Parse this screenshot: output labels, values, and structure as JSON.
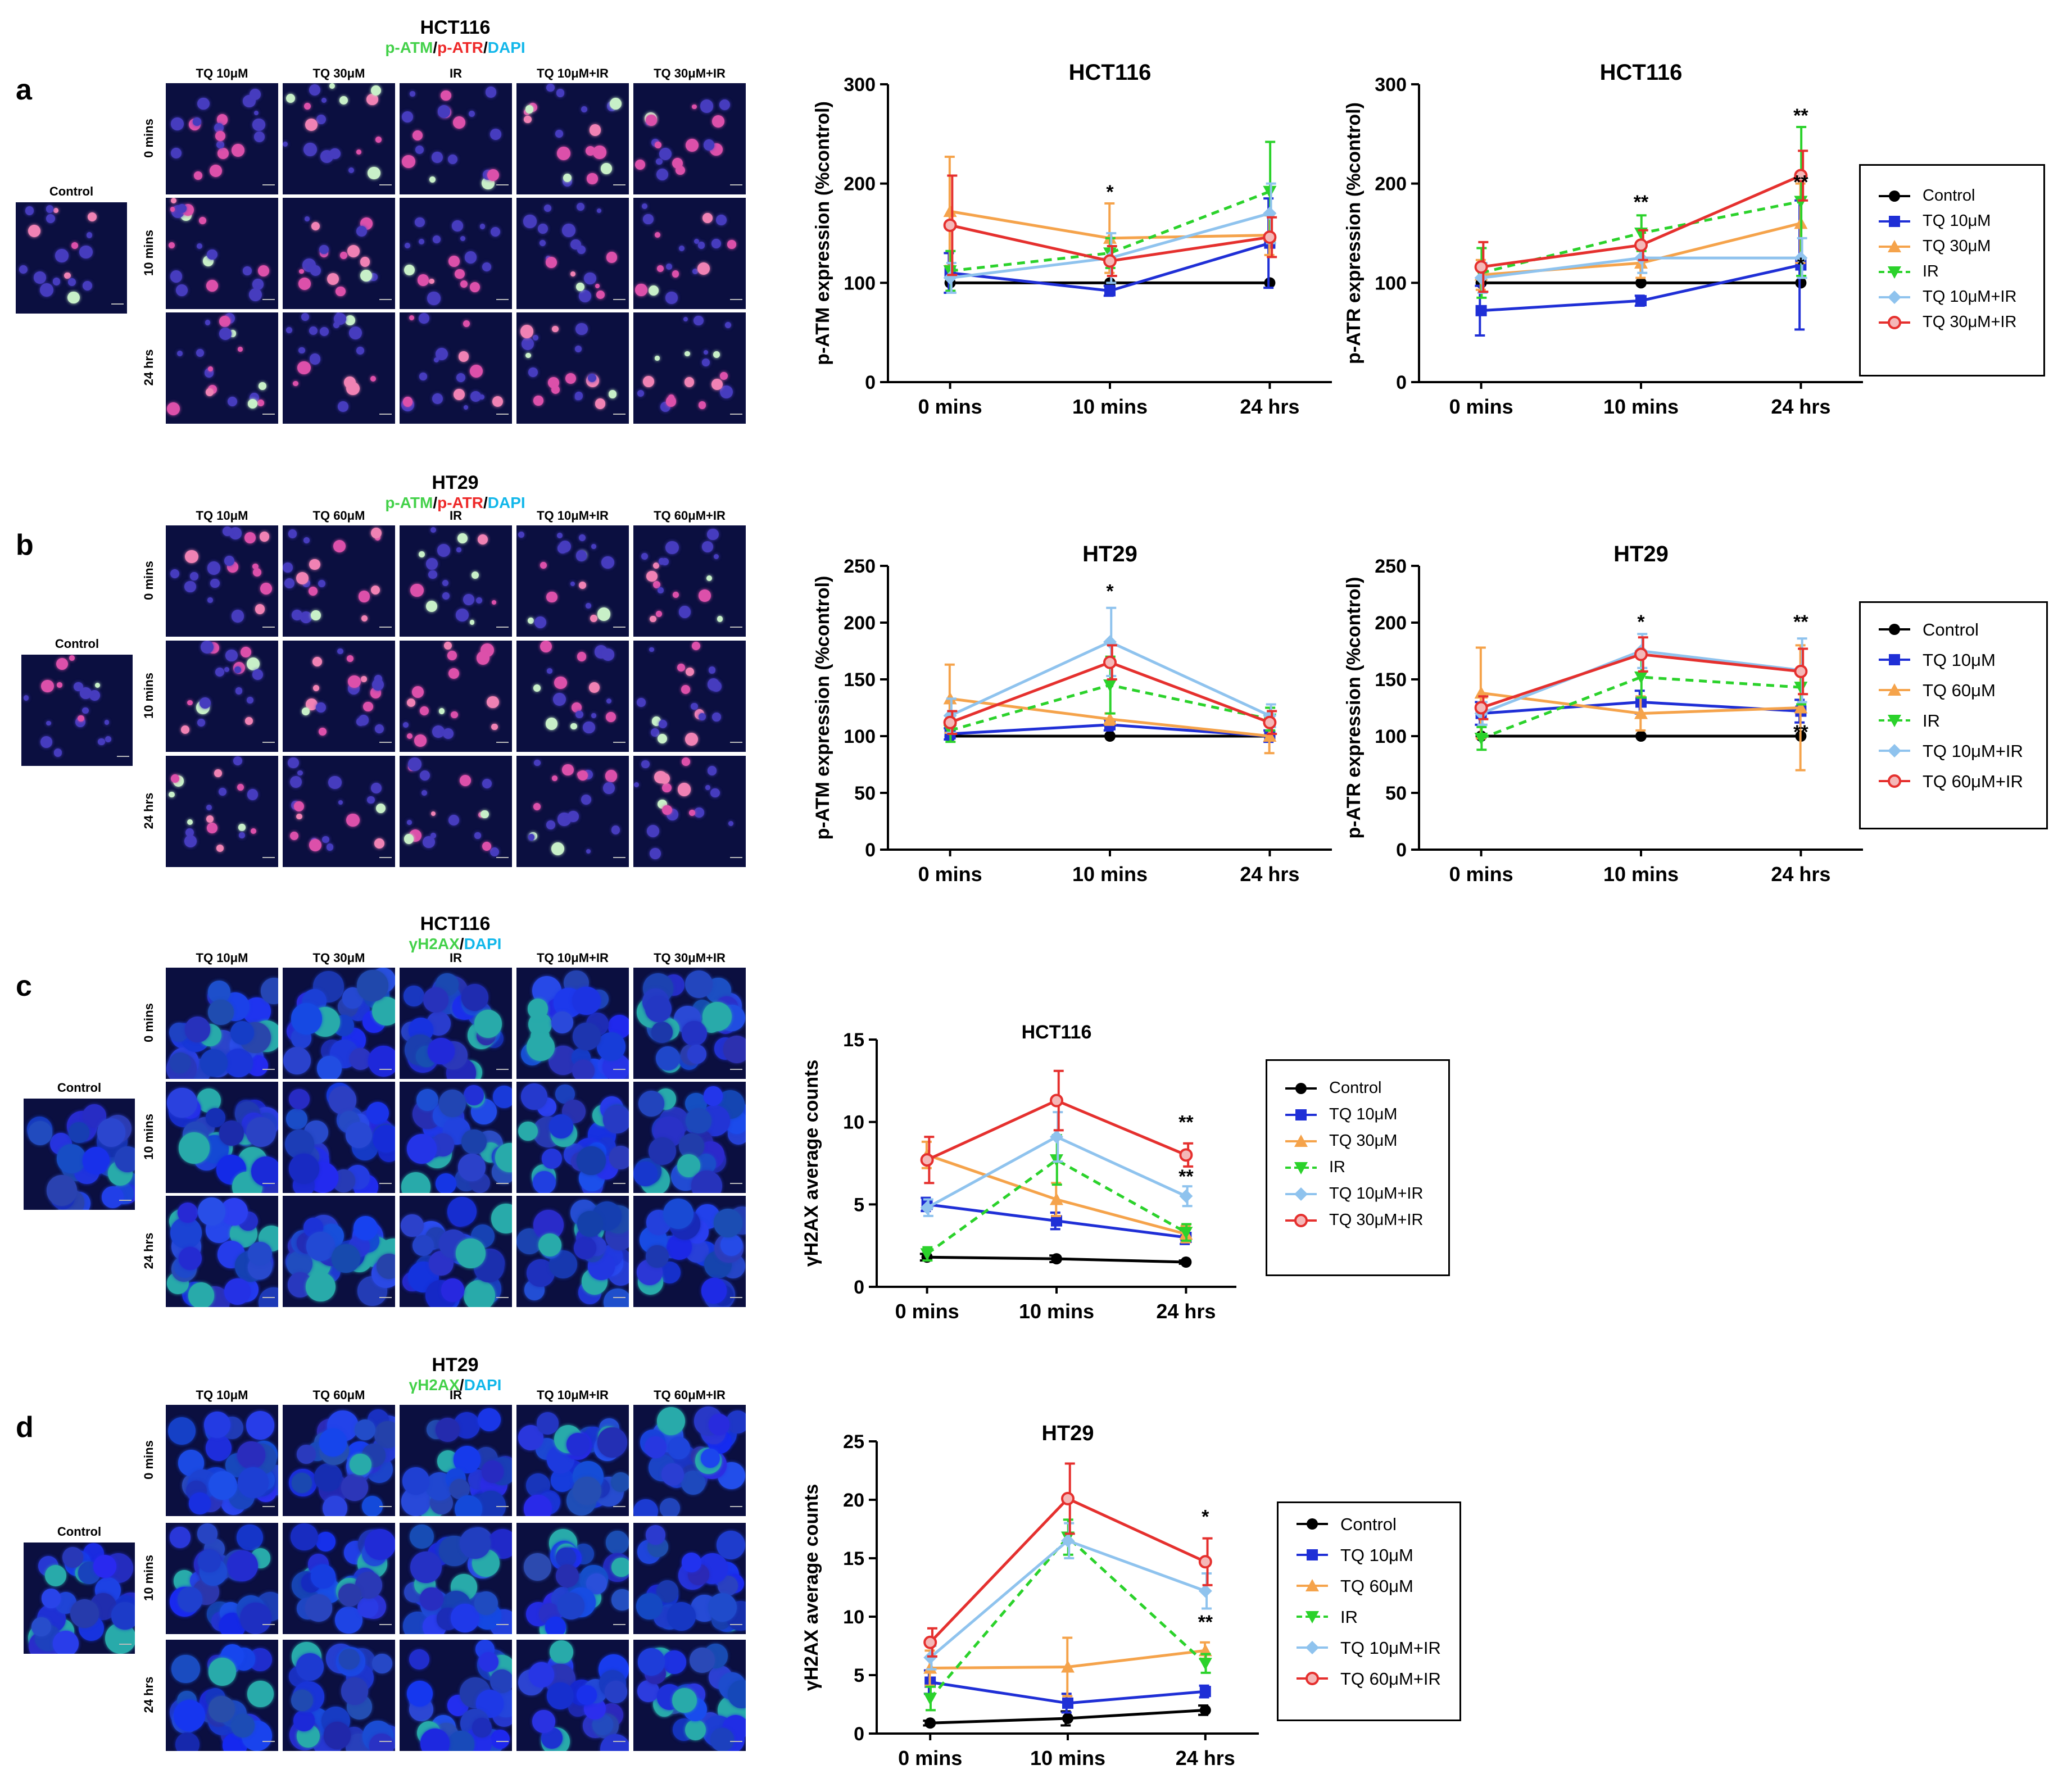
{
  "colors": {
    "control": "#000000",
    "tq_low": "#1f2fd6",
    "tq_high": "#f5a34b",
    "ir": "#2bd22b",
    "tq_low_ir": "#8fc3ee",
    "tq_high_ir": "#e5302e",
    "green": "#44d14a",
    "red": "#ee2a2a",
    "cyan": "#12b7ea"
  },
  "panels": [
    {
      "letter": "a",
      "cell_line": "HCT116",
      "stain": [
        {
          "text": "p-ATM",
          "color": "green"
        },
        {
          "text": "/",
          "color": "black"
        },
        {
          "text": "p-ATR",
          "color": "red"
        },
        {
          "text": "/",
          "color": "black"
        },
        {
          "text": "DAPI",
          "color": "cyan"
        }
      ],
      "columns": [
        "TQ 10μM",
        "TQ 30μM",
        "IR",
        "TQ 10μM+IR",
        "TQ 30μM+IR"
      ],
      "rows": [
        "0 mins",
        "10 mins",
        "24 hrs"
      ],
      "control_label": "Control"
    },
    {
      "letter": "b",
      "cell_line": "HT29",
      "stain": [
        {
          "text": "p-ATM",
          "color": "green"
        },
        {
          "text": "/",
          "color": "black"
        },
        {
          "text": "p-ATR",
          "color": "red"
        },
        {
          "text": "/",
          "color": "black"
        },
        {
          "text": "DAPI",
          "color": "cyan"
        }
      ],
      "columns": [
        "TQ 10μM",
        "TQ 60μM",
        "IR",
        "TQ 10μM+IR",
        "TQ 60μM+IR"
      ],
      "rows": [
        "0 mins",
        "10 mins",
        "24 hrs"
      ],
      "control_label": "Control"
    },
    {
      "letter": "c",
      "cell_line": "HCT116",
      "stain": [
        {
          "text": "γH2AX",
          "color": "green"
        },
        {
          "text": "/",
          "color": "black"
        },
        {
          "text": "DAPI",
          "color": "cyan"
        }
      ],
      "columns": [
        "TQ 10μM",
        "TQ 30μM",
        "IR",
        "TQ 10μM+IR",
        "TQ 30μM+IR"
      ],
      "rows": [
        "0 mins",
        "10 mins",
        "24 hrs"
      ],
      "control_label": "Control"
    },
    {
      "letter": "d",
      "cell_line": "HT29",
      "stain": [
        {
          "text": "γH2AX",
          "color": "green"
        },
        {
          "text": "/",
          "color": "black"
        },
        {
          "text": "DAPI",
          "color": "cyan"
        }
      ],
      "columns": [
        "TQ 10μM",
        "TQ 60μM",
        "IR",
        "TQ 10μM+IR",
        "TQ 60μM+IR"
      ],
      "rows": [
        "0 mins",
        "10 mins",
        "24 hrs"
      ],
      "control_label": "Control"
    }
  ],
  "legends": [
    {
      "id": "legend-a",
      "items": [
        "Control",
        "TQ 10μM",
        "TQ 30μM",
        "IR",
        "TQ 10μM+IR",
        "TQ 30μM+IR"
      ]
    },
    {
      "id": "legend-b",
      "items": [
        "Control",
        "TQ 10μM",
        "TQ 60μM",
        "IR",
        "TQ 10μM+IR",
        "TQ 60μM+IR"
      ]
    },
    {
      "id": "legend-c",
      "items": [
        "Control",
        "TQ 10μM",
        "TQ 30μM",
        "IR",
        "TQ 10μM+IR",
        "TQ 30μM+IR"
      ]
    },
    {
      "id": "legend-d",
      "items": [
        "Control",
        "TQ 10μM",
        "TQ 60μM",
        "IR",
        "TQ 10μM+IR",
        "TQ 60μM+IR"
      ]
    }
  ],
  "chart_data": [
    {
      "id": "a-atm",
      "type": "line",
      "title": "HCT116",
      "xlabel": "",
      "ylabel": "p-ATM expression (%control)",
      "categories": [
        "0 mins",
        "10 mins",
        "24 hrs"
      ],
      "ylim": [
        0,
        300
      ],
      "yticks": [
        0,
        100,
        200,
        300
      ],
      "series": [
        {
          "name": "Control",
          "values": [
            100,
            100,
            100
          ],
          "errors": [
            0,
            0,
            0
          ]
        },
        {
          "name": "TQ 10μM",
          "values": [
            110,
            92,
            140
          ],
          "errors": [
            20,
            5,
            45
          ]
        },
        {
          "name": "TQ 30μM",
          "values": [
            172,
            145,
            148
          ],
          "errors": [
            55,
            35,
            20
          ]
        },
        {
          "name": "IR",
          "values": [
            112,
            130,
            192
          ],
          "errors": [
            20,
            15,
            50
          ]
        },
        {
          "name": "TQ 10μM+IR",
          "values": [
            105,
            125,
            170
          ],
          "errors": [
            15,
            25,
            30
          ]
        },
        {
          "name": "TQ 30μM+IR",
          "values": [
            158,
            122,
            146
          ],
          "errors": [
            50,
            15,
            20
          ]
        }
      ],
      "annotations": [
        {
          "x": "10 mins",
          "text": "*",
          "y": 185
        }
      ]
    },
    {
      "id": "a-atr",
      "type": "line",
      "title": "HCT116",
      "xlabel": "",
      "ylabel": "p-ATR expression (%control)",
      "categories": [
        "0 mins",
        "10 mins",
        "24 hrs"
      ],
      "ylim": [
        0,
        300
      ],
      "yticks": [
        0,
        100,
        200,
        300
      ],
      "series": [
        {
          "name": "Control",
          "values": [
            100,
            100,
            100
          ],
          "errors": [
            0,
            0,
            0
          ]
        },
        {
          "name": "TQ 10μM",
          "values": [
            72,
            82,
            118
          ],
          "errors": [
            25,
            5,
            65
          ]
        },
        {
          "name": "TQ 30μM",
          "values": [
            108,
            120,
            160
          ],
          "errors": [
            15,
            15,
            40
          ]
        },
        {
          "name": "IR",
          "values": [
            110,
            150,
            182
          ],
          "errors": [
            25,
            18,
            75
          ]
        },
        {
          "name": "TQ 10μM+IR",
          "values": [
            105,
            125,
            125
          ],
          "errors": [
            15,
            15,
            20
          ]
        },
        {
          "name": "TQ 30μM+IR",
          "values": [
            116,
            138,
            208
          ],
          "errors": [
            25,
            15,
            25
          ]
        }
      ],
      "annotations": [
        {
          "x": "10 mins",
          "text": "**",
          "y": 175
        },
        {
          "x": "24 hrs",
          "text": "**",
          "y": 262
        },
        {
          "x": "24 hrs",
          "text": "**",
          "y": 195
        },
        {
          "x": "24 hrs",
          "text": "*",
          "y": 112
        }
      ]
    },
    {
      "id": "b-atm",
      "type": "line",
      "title": "HT29",
      "xlabel": "",
      "ylabel": "p-ATM expression (%control)",
      "categories": [
        "0 mins",
        "10 mins",
        "24 hrs"
      ],
      "ylim": [
        0,
        250
      ],
      "yticks": [
        0,
        50,
        100,
        150,
        200,
        250
      ],
      "series": [
        {
          "name": "Control",
          "values": [
            100,
            100,
            100
          ],
          "errors": [
            0,
            0,
            0
          ]
        },
        {
          "name": "TQ 10μM",
          "values": [
            102,
            110,
            100
          ],
          "errors": [
            5,
            5,
            5
          ]
        },
        {
          "name": "TQ 60μM",
          "values": [
            133,
            115,
            100
          ],
          "errors": [
            30,
            5,
            15
          ]
        },
        {
          "name": "IR",
          "values": [
            105,
            145,
            115
          ],
          "errors": [
            10,
            25,
            10
          ]
        },
        {
          "name": "TQ 10μM+IR",
          "values": [
            118,
            183,
            118
          ],
          "errors": [
            15,
            30,
            10
          ]
        },
        {
          "name": "TQ 60μM+IR",
          "values": [
            112,
            165,
            112
          ],
          "errors": [
            10,
            15,
            10
          ]
        }
      ],
      "annotations": [
        {
          "x": "10 mins",
          "text": "*",
          "y": 222
        }
      ]
    },
    {
      "id": "b-atr",
      "type": "line",
      "title": "HT29",
      "xlabel": "",
      "ylabel": "p-ATR expression (%control)",
      "categories": [
        "0 mins",
        "10 mins",
        "24 hrs"
      ],
      "ylim": [
        0,
        250
      ],
      "yticks": [
        0,
        50,
        100,
        150,
        200,
        250
      ],
      "series": [
        {
          "name": "Control",
          "values": [
            100,
            100,
            100
          ],
          "errors": [
            0,
            0,
            0
          ]
        },
        {
          "name": "TQ 10μM",
          "values": [
            120,
            130,
            122
          ],
          "errors": [
            10,
            10,
            10
          ]
        },
        {
          "name": "TQ 60μM",
          "values": [
            138,
            120,
            125
          ],
          "errors": [
            40,
            15,
            55
          ]
        },
        {
          "name": "IR",
          "values": [
            98,
            152,
            143
          ],
          "errors": [
            10,
            18,
            15
          ]
        },
        {
          "name": "TQ 10μM+IR",
          "values": [
            120,
            175,
            158
          ],
          "errors": [
            10,
            15,
            28
          ]
        },
        {
          "name": "TQ 60μM+IR",
          "values": [
            125,
            172,
            157
          ],
          "errors": [
            10,
            15,
            20
          ]
        }
      ],
      "annotations": [
        {
          "x": "10 mins",
          "text": "*",
          "y": 195
        },
        {
          "x": "24 hrs",
          "text": "**",
          "y": 195
        },
        {
          "x": "24 hrs",
          "text": "**",
          "y": 98
        }
      ]
    },
    {
      "id": "c-h2ax",
      "type": "line",
      "title": "HCT116",
      "xlabel": "",
      "ylabel": "γH2AX average counts",
      "categories": [
        "0 mins",
        "10 mins",
        "24 hrs"
      ],
      "ylim": [
        0,
        15
      ],
      "yticks": [
        0,
        5,
        10,
        15
      ],
      "series": [
        {
          "name": "Control",
          "values": [
            1.8,
            1.7,
            1.5
          ],
          "errors": [
            0.2,
            0.2,
            0.1
          ]
        },
        {
          "name": "TQ 10μM",
          "values": [
            5.0,
            4.0,
            3.0
          ],
          "errors": [
            0.4,
            0.5,
            0.4
          ]
        },
        {
          "name": "TQ 30μM",
          "values": [
            8.0,
            5.3,
            3.2
          ],
          "errors": [
            0.8,
            1.0,
            0.5
          ]
        },
        {
          "name": "IR",
          "values": [
            2.0,
            7.7,
            3.3
          ],
          "errors": [
            0.4,
            1.5,
            0.5
          ]
        },
        {
          "name": "TQ 10μM+IR",
          "values": [
            4.8,
            9.1,
            5.5
          ],
          "errors": [
            0.5,
            1.5,
            0.6
          ]
        },
        {
          "name": "TQ 30μM+IR",
          "values": [
            7.7,
            11.3,
            8.0
          ],
          "errors": [
            1.4,
            1.8,
            0.7
          ]
        }
      ],
      "annotations": [
        {
          "x": "24 hrs",
          "text": "**",
          "y": 9.6
        },
        {
          "x": "24 hrs",
          "text": "**",
          "y": 6.3
        }
      ]
    },
    {
      "id": "d-h2ax",
      "type": "line",
      "title": "HT29",
      "xlabel": "",
      "ylabel": "γH2AX average counts",
      "categories": [
        "0 mins",
        "10 mins",
        "24 hrs"
      ],
      "ylim": [
        0,
        25
      ],
      "yticks": [
        0,
        5,
        10,
        15,
        20,
        25
      ],
      "series": [
        {
          "name": "Control",
          "values": [
            0.9,
            1.3,
            2.0
          ],
          "errors": [
            0.2,
            0.6,
            0.4
          ]
        },
        {
          "name": "TQ 10μM",
          "values": [
            4.4,
            2.6,
            3.6
          ],
          "errors": [
            1.0,
            0.8,
            0.5
          ]
        },
        {
          "name": "TQ 60μM",
          "values": [
            5.6,
            5.7,
            7.1
          ],
          "errors": [
            1.5,
            2.5,
            0.7
          ]
        },
        {
          "name": "IR",
          "values": [
            3.0,
            16.8,
            6.0
          ],
          "errors": [
            1.0,
            1.5,
            0.8
          ]
        },
        {
          "name": "TQ 10μM+IR",
          "values": [
            6.5,
            16.5,
            12.2
          ],
          "errors": [
            1.0,
            1.5,
            1.5
          ]
        },
        {
          "name": "TQ 60μM+IR",
          "values": [
            7.8,
            20.1,
            14.7
          ],
          "errors": [
            1.2,
            3.0,
            2.0
          ]
        }
      ],
      "annotations": [
        {
          "x": "24 hrs",
          "text": "*",
          "y": 18.0
        },
        {
          "x": "24 hrs",
          "text": "**",
          "y": 9.0
        }
      ]
    }
  ]
}
